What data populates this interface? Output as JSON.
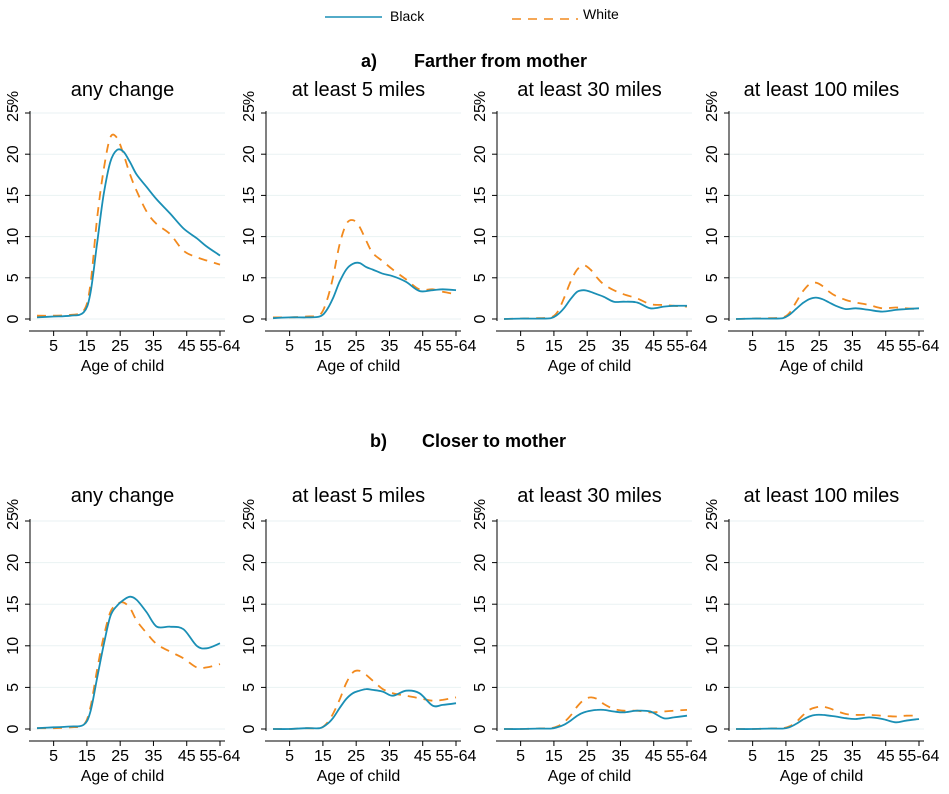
{
  "legend": {
    "items": [
      {
        "label": "Black",
        "color": "#1a8fb5",
        "dash": "solid"
      },
      {
        "label": "White",
        "color": "#f28a1e",
        "dash": "dashed"
      }
    ]
  },
  "panels": [
    {
      "label": "a)",
      "title": "Farther from mother"
    },
    {
      "label": "b)",
      "title": "Closer to mother"
    }
  ],
  "chart_data": [
    {
      "type": "line",
      "panel": "a",
      "title": "any change",
      "xlabel": "Age of child",
      "ylabel": "%",
      "x": [
        0,
        5,
        10,
        14,
        16,
        18,
        20,
        22,
        24,
        26,
        28,
        30,
        33,
        36,
        40,
        44,
        48,
        51,
        55
      ],
      "series": [
        {
          "name": "Black",
          "values": [
            0.2,
            0.3,
            0.4,
            0.8,
            3,
            9,
            15,
            19,
            20.5,
            20.3,
            19,
            17.5,
            16,
            14.5,
            12.8,
            11,
            9.8,
            8.8,
            7.7
          ]
        },
        {
          "name": "White",
          "values": [
            0.4,
            0.4,
            0.5,
            1.0,
            4,
            12,
            18,
            22,
            22,
            20,
            17.5,
            15.5,
            13,
            11.5,
            10.3,
            8.3,
            7.5,
            7.1,
            6.6
          ]
        }
      ],
      "xticks": [
        "5",
        "15",
        "25",
        "35",
        "45",
        "55-64"
      ],
      "yticks": [
        "0",
        "5",
        "10",
        "15",
        "20",
        "25"
      ],
      "xlim": [
        0,
        55
      ],
      "ylim": [
        0,
        25
      ]
    },
    {
      "type": "line",
      "panel": "a",
      "title": "at least 5 miles",
      "xlabel": "Age of child",
      "ylabel": "%",
      "x": [
        0,
        5,
        10,
        14,
        16,
        18,
        20,
        22,
        24,
        26,
        28,
        30,
        33,
        36,
        40,
        44,
        48,
        51,
        55
      ],
      "series": [
        {
          "name": "Black",
          "values": [
            0.1,
            0.2,
            0.2,
            0.3,
            1,
            2.5,
            4.5,
            6,
            6.7,
            6.8,
            6.3,
            6,
            5.5,
            5.2,
            4.5,
            3.4,
            3.5,
            3.6,
            3.5
          ]
        },
        {
          "name": "White",
          "values": [
            0.2,
            0.2,
            0.3,
            0.5,
            2,
            5,
            9,
            11.5,
            12,
            11.2,
            9.5,
            8,
            7,
            6,
            4.8,
            3.6,
            3.6,
            3.3,
            3.0
          ]
        }
      ],
      "xticks": [
        "5",
        "15",
        "25",
        "35",
        "45",
        "55-64"
      ],
      "yticks": [
        "0",
        "5",
        "10",
        "15",
        "20",
        "25"
      ],
      "xlim": [
        0,
        55
      ],
      "ylim": [
        0,
        25
      ]
    },
    {
      "type": "line",
      "panel": "a",
      "title": "at least 30 miles",
      "xlabel": "Age of child",
      "ylabel": "%",
      "x": [
        0,
        5,
        10,
        14,
        16,
        18,
        20,
        22,
        24,
        26,
        28,
        30,
        33,
        36,
        40,
        44,
        48,
        51,
        55
      ],
      "series": [
        {
          "name": "Black",
          "values": [
            0.0,
            0.05,
            0.05,
            0.1,
            0.5,
            1.3,
            2.4,
            3.3,
            3.5,
            3.3,
            3.0,
            2.7,
            2.1,
            2.1,
            2.0,
            1.3,
            1.5,
            1.6,
            1.6
          ]
        },
        {
          "name": "White",
          "values": [
            0.0,
            0.05,
            0.1,
            0.2,
            0.8,
            2.5,
            4.5,
            6,
            6.5,
            6,
            5,
            4.2,
            3.5,
            3,
            2.5,
            1.8,
            1.7,
            1.6,
            1.5
          ]
        }
      ],
      "xticks": [
        "5",
        "15",
        "25",
        "35",
        "45",
        "55-64"
      ],
      "yticks": [
        "0",
        "5",
        "10",
        "15",
        "20",
        "25"
      ],
      "xlim": [
        0,
        55
      ],
      "ylim": [
        0,
        25
      ]
    },
    {
      "type": "line",
      "panel": "a",
      "title": "at least 100 miles",
      "xlabel": "Age of child",
      "ylabel": "%",
      "x": [
        0,
        5,
        10,
        14,
        16,
        18,
        20,
        22,
        24,
        26,
        28,
        30,
        33,
        36,
        40,
        44,
        48,
        51,
        55
      ],
      "series": [
        {
          "name": "Black",
          "values": [
            0.0,
            0.05,
            0.05,
            0.1,
            0.5,
            1.2,
            1.9,
            2.4,
            2.6,
            2.4,
            2.0,
            1.6,
            1.2,
            1.3,
            1.1,
            0.9,
            1.1,
            1.2,
            1.3
          ]
        },
        {
          "name": "White",
          "values": [
            0.0,
            0.05,
            0.1,
            0.2,
            0.7,
            2,
            3.3,
            4.2,
            4.4,
            4.0,
            3.3,
            2.8,
            2.3,
            2.0,
            1.7,
            1.3,
            1.4,
            1.3,
            1.2
          ]
        }
      ],
      "xticks": [
        "5",
        "15",
        "25",
        "35",
        "45",
        "55-64"
      ],
      "yticks": [
        "0",
        "5",
        "10",
        "15",
        "20",
        "25"
      ],
      "xlim": [
        0,
        55
      ],
      "ylim": [
        0,
        25
      ]
    },
    {
      "type": "line",
      "panel": "b",
      "title": "any change",
      "xlabel": "Age of child",
      "ylabel": "%",
      "x": [
        0,
        5,
        10,
        14,
        16,
        18,
        20,
        22,
        24,
        26,
        28,
        30,
        33,
        36,
        40,
        44,
        48,
        51,
        55
      ],
      "series": [
        {
          "name": "Black",
          "values": [
            0.1,
            0.2,
            0.3,
            0.5,
            2,
            6,
            10,
            13.5,
            14.8,
            15.5,
            15.9,
            15.5,
            14,
            12.3,
            12.3,
            12,
            10,
            9.7,
            10.3
          ]
        },
        {
          "name": "White",
          "values": [
            0.1,
            0.1,
            0.2,
            0.5,
            2.5,
            7,
            11,
            14,
            15,
            15.2,
            14.5,
            13,
            11.5,
            10.2,
            9.3,
            8.5,
            7.4,
            7.4,
            7.8
          ]
        }
      ],
      "xticks": [
        "5",
        "15",
        "25",
        "35",
        "45",
        "55-64"
      ],
      "yticks": [
        "0",
        "5",
        "10",
        "15",
        "20",
        "25"
      ],
      "xlim": [
        0,
        55
      ],
      "ylim": [
        0,
        25
      ]
    },
    {
      "type": "line",
      "panel": "b",
      "title": "at least 5 miles",
      "xlabel": "Age of child",
      "ylabel": "%",
      "x": [
        0,
        5,
        10,
        14,
        16,
        18,
        20,
        22,
        24,
        26,
        28,
        30,
        33,
        36,
        40,
        44,
        48,
        51,
        55
      ],
      "series": [
        {
          "name": "Black",
          "values": [
            0.0,
            0.0,
            0.1,
            0.1,
            0.5,
            1.3,
            2.5,
            3.6,
            4.3,
            4.6,
            4.8,
            4.7,
            4.5,
            4.0,
            4.6,
            4.3,
            2.8,
            2.9,
            3.1
          ]
        },
        {
          "name": "White",
          "values": [
            0.0,
            0.0,
            0.1,
            0.1,
            0.6,
            1.8,
            3.5,
            5.5,
            6.8,
            7.0,
            6.5,
            5.8,
            4.8,
            4.3,
            4.0,
            3.7,
            3.4,
            3.5,
            3.8
          ]
        }
      ],
      "xticks": [
        "5",
        "15",
        "25",
        "35",
        "45",
        "55-64"
      ],
      "yticks": [
        "0",
        "5",
        "10",
        "15",
        "20",
        "25"
      ],
      "xlim": [
        0,
        55
      ],
      "ylim": [
        0,
        25
      ]
    },
    {
      "type": "line",
      "panel": "b",
      "title": "at least 30 miles",
      "xlabel": "Age of child",
      "ylabel": "%",
      "x": [
        0,
        5,
        10,
        14,
        16,
        18,
        20,
        22,
        24,
        26,
        28,
        30,
        33,
        36,
        40,
        44,
        48,
        51,
        55
      ],
      "series": [
        {
          "name": "Black",
          "values": [
            0.0,
            0.0,
            0.05,
            0.05,
            0.2,
            0.5,
            1.0,
            1.6,
            2.0,
            2.2,
            2.3,
            2.3,
            2.1,
            2.0,
            2.2,
            2.1,
            1.3,
            1.4,
            1.6
          ]
        },
        {
          "name": "White",
          "values": [
            0.0,
            0.0,
            0.05,
            0.1,
            0.3,
            0.8,
            1.6,
            2.7,
            3.5,
            3.8,
            3.6,
            3.0,
            2.4,
            2.2,
            2.2,
            2.0,
            2.1,
            2.2,
            2.3
          ]
        }
      ],
      "xticks": [
        "5",
        "15",
        "25",
        "35",
        "45",
        "55-64"
      ],
      "yticks": [
        "0",
        "5",
        "10",
        "15",
        "20",
        "25"
      ],
      "xlim": [
        0,
        55
      ],
      "ylim": [
        0,
        25
      ]
    },
    {
      "type": "line",
      "panel": "b",
      "title": "at least 100 miles",
      "xlabel": "Age of child",
      "ylabel": "%",
      "x": [
        0,
        5,
        10,
        14,
        16,
        18,
        20,
        22,
        24,
        26,
        28,
        30,
        33,
        36,
        40,
        44,
        48,
        51,
        55
      ],
      "series": [
        {
          "name": "Black",
          "values": [
            0.0,
            0.0,
            0.05,
            0.05,
            0.2,
            0.6,
            1.1,
            1.5,
            1.7,
            1.7,
            1.6,
            1.5,
            1.3,
            1.2,
            1.4,
            1.2,
            0.8,
            1.0,
            1.2
          ]
        },
        {
          "name": "White",
          "values": [
            0.0,
            0.0,
            0.05,
            0.1,
            0.3,
            0.8,
            1.6,
            2.3,
            2.6,
            2.7,
            2.5,
            2.2,
            1.8,
            1.7,
            1.7,
            1.6,
            1.5,
            1.6,
            1.6
          ]
        }
      ],
      "xticks": [
        "5",
        "15",
        "25",
        "35",
        "45",
        "55-64"
      ],
      "yticks": [
        "0",
        "5",
        "10",
        "15",
        "20",
        "25"
      ],
      "xlim": [
        0,
        55
      ],
      "ylim": [
        0,
        25
      ]
    }
  ]
}
